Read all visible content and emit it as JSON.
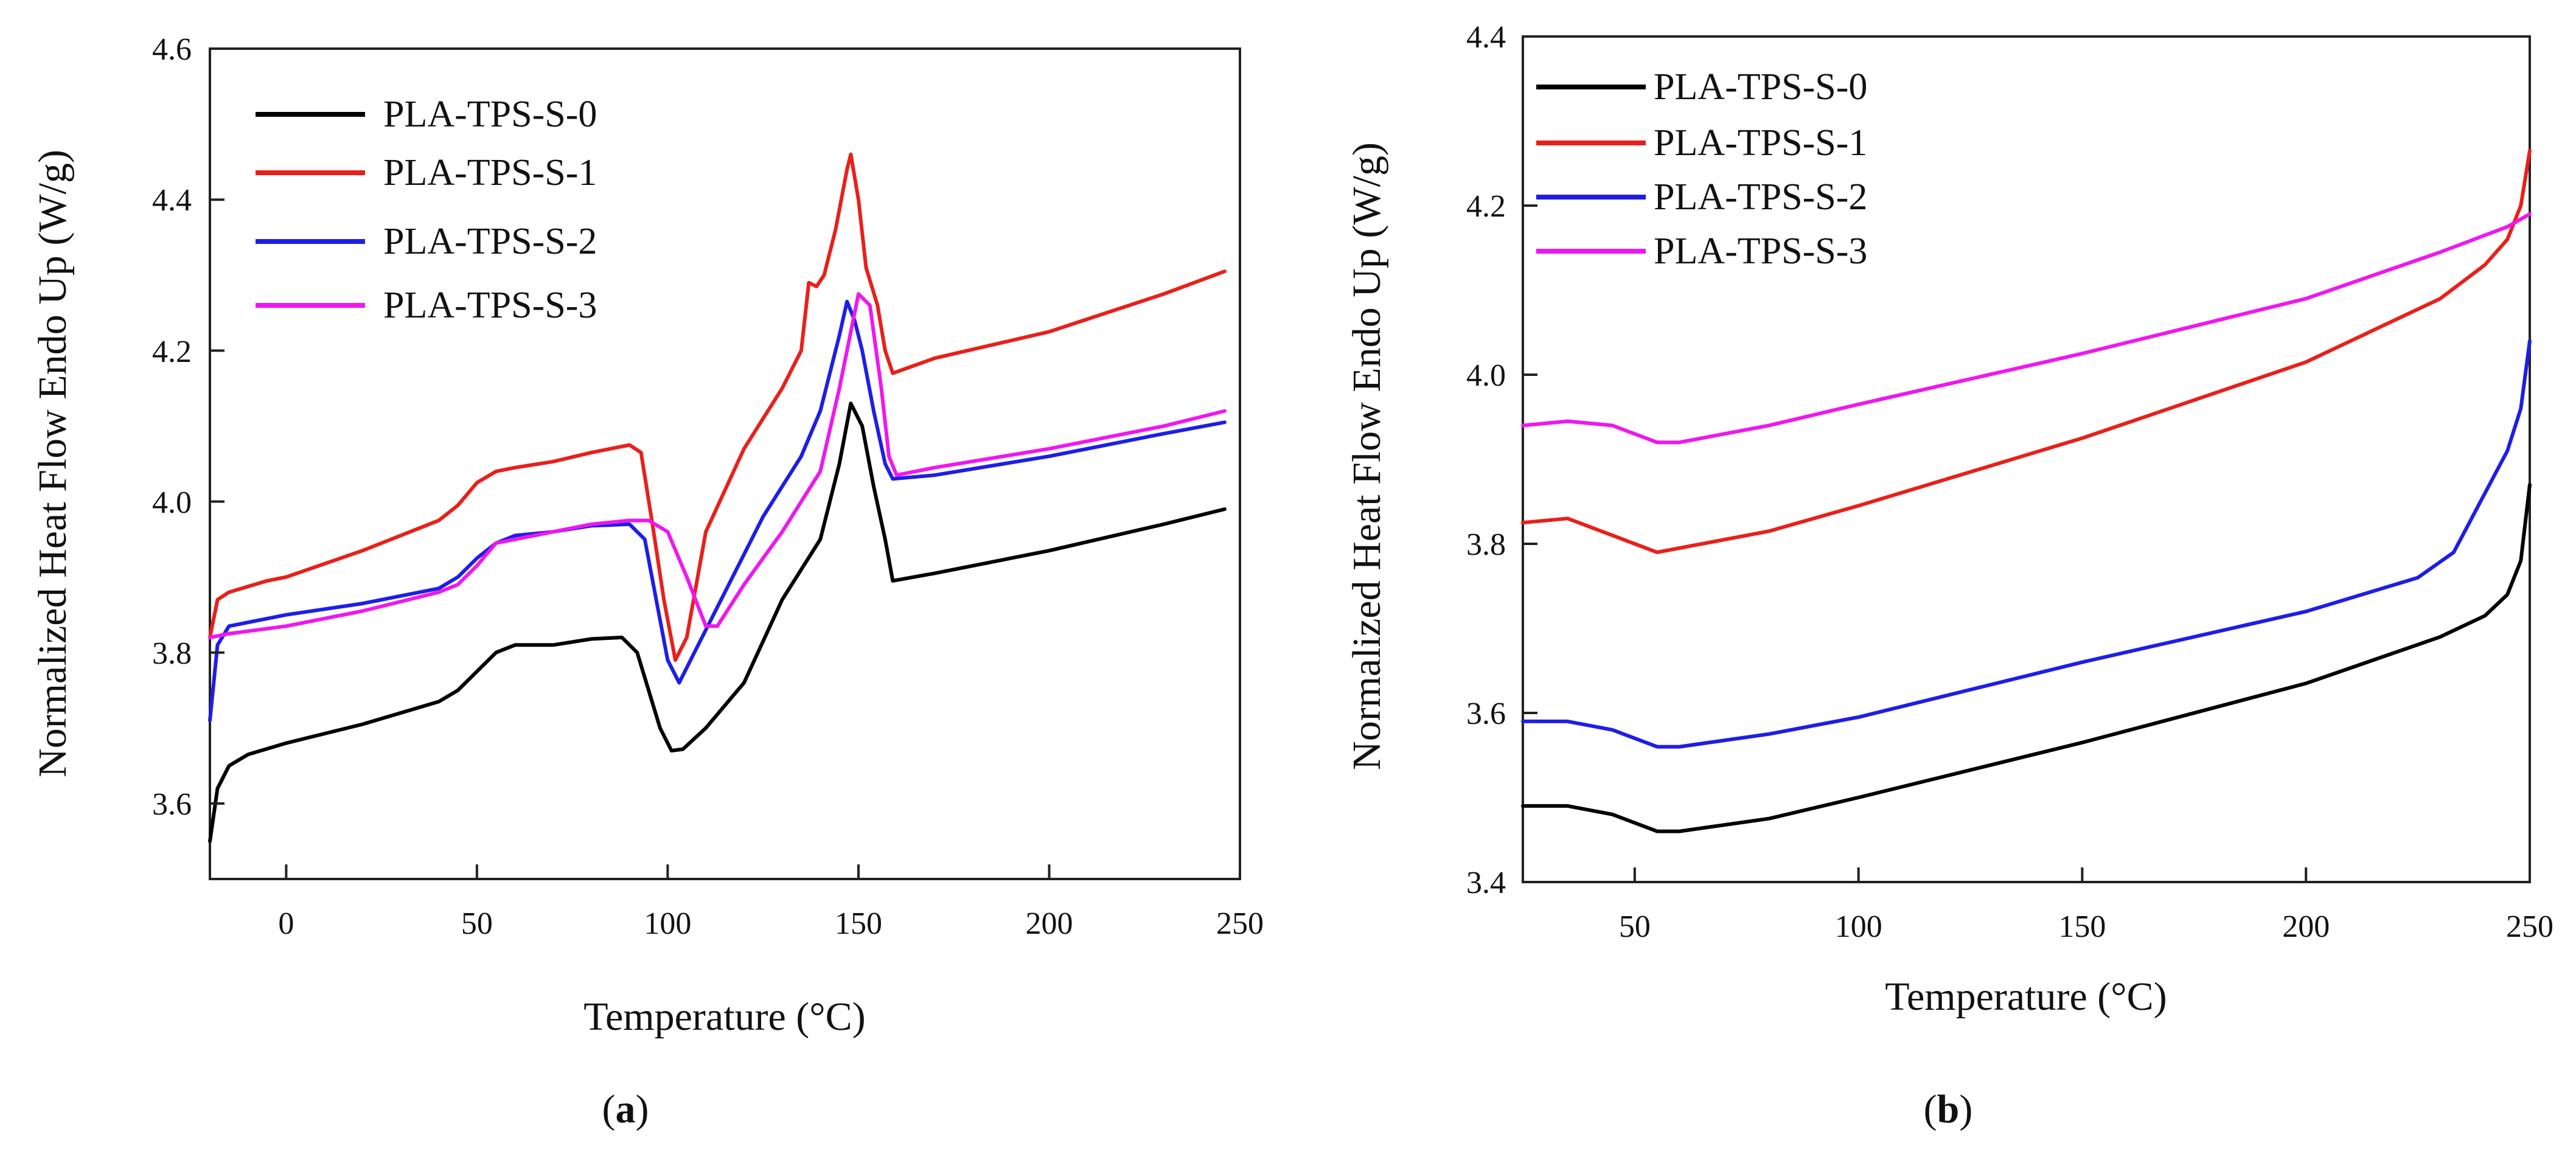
{
  "chart_data": [
    {
      "type": "line",
      "panel": "a",
      "panel_label": "a",
      "title": "",
      "xlabel": "Temperature (°C)",
      "ylabel": "Normalized Heat Flow Endo Up (W/g)",
      "xlim": [
        -20,
        250
      ],
      "ylim": [
        3.5,
        4.6
      ],
      "xticks": [
        0,
        50,
        100,
        150,
        200,
        250
      ],
      "yticks": [
        3.6,
        3.8,
        4.0,
        4.2,
        4.4,
        4.6
      ],
      "xtick_labels": [
        "0",
        "50",
        "100",
        "150",
        "200",
        "250"
      ],
      "ytick_labels": [
        "3.6",
        "3.8",
        "4.0",
        "4.2",
        "4.4",
        "4.6"
      ],
      "legend_position": "top-left",
      "series": [
        {
          "name": "PLA-TPS-S-0",
          "color": "#000000",
          "points": [
            [
              -20,
              3.55
            ],
            [
              -18,
              3.62
            ],
            [
              -15,
              3.65
            ],
            [
              -10,
              3.665
            ],
            [
              0,
              3.68
            ],
            [
              20,
              3.705
            ],
            [
              40,
              3.735
            ],
            [
              45,
              3.75
            ],
            [
              50,
              3.775
            ],
            [
              55,
              3.8
            ],
            [
              60,
              3.81
            ],
            [
              70,
              3.81
            ],
            [
              80,
              3.818
            ],
            [
              88,
              3.82
            ],
            [
              92,
              3.8
            ],
            [
              95,
              3.75
            ],
            [
              98,
              3.7
            ],
            [
              101,
              3.67
            ],
            [
              104,
              3.672
            ],
            [
              110,
              3.7
            ],
            [
              120,
              3.76
            ],
            [
              130,
              3.87
            ],
            [
              140,
              3.95
            ],
            [
              145,
              4.05
            ],
            [
              148,
              4.13
            ],
            [
              151,
              4.1
            ],
            [
              154,
              4.02
            ],
            [
              157,
              3.95
            ],
            [
              159,
              3.895
            ],
            [
              170,
              3.905
            ],
            [
              200,
              3.935
            ],
            [
              230,
              3.97
            ],
            [
              246,
              3.99
            ]
          ]
        },
        {
          "name": "PLA-TPS-S-1",
          "color": "#e8201b",
          "points": [
            [
              -20,
              3.82
            ],
            [
              -18,
              3.87
            ],
            [
              -15,
              3.88
            ],
            [
              -5,
              3.895
            ],
            [
              0,
              3.9
            ],
            [
              20,
              3.935
            ],
            [
              40,
              3.975
            ],
            [
              45,
              3.995
            ],
            [
              50,
              4.025
            ],
            [
              55,
              4.04
            ],
            [
              60,
              4.045
            ],
            [
              70,
              4.053
            ],
            [
              80,
              4.065
            ],
            [
              90,
              4.075
            ],
            [
              93,
              4.065
            ],
            [
              96,
              3.97
            ],
            [
              99,
              3.87
            ],
            [
              102,
              3.79
            ],
            [
              105,
              3.82
            ],
            [
              110,
              3.96
            ],
            [
              120,
              4.07
            ],
            [
              130,
              4.15
            ],
            [
              135,
              4.2
            ],
            [
              137,
              4.29
            ],
            [
              139,
              4.285
            ],
            [
              141,
              4.3
            ],
            [
              144,
              4.36
            ],
            [
              147,
              4.44
            ],
            [
              148,
              4.46
            ],
            [
              150,
              4.4
            ],
            [
              152,
              4.31
            ],
            [
              155,
              4.26
            ],
            [
              157,
              4.2
            ],
            [
              159,
              4.17
            ],
            [
              170,
              4.19
            ],
            [
              200,
              4.225
            ],
            [
              230,
              4.275
            ],
            [
              246,
              4.305
            ]
          ]
        },
        {
          "name": "PLA-TPS-S-2",
          "color": "#1e1ee6",
          "points": [
            [
              -20,
              3.71
            ],
            [
              -18,
              3.81
            ],
            [
              -15,
              3.835
            ],
            [
              -5,
              3.845
            ],
            [
              0,
              3.85
            ],
            [
              20,
              3.865
            ],
            [
              40,
              3.885
            ],
            [
              45,
              3.9
            ],
            [
              50,
              3.925
            ],
            [
              55,
              3.945
            ],
            [
              60,
              3.955
            ],
            [
              70,
              3.96
            ],
            [
              80,
              3.968
            ],
            [
              90,
              3.97
            ],
            [
              94,
              3.95
            ],
            [
              97,
              3.87
            ],
            [
              100,
              3.79
            ],
            [
              103,
              3.76
            ],
            [
              107,
              3.8
            ],
            [
              115,
              3.88
            ],
            [
              125,
              3.98
            ],
            [
              135,
              4.06
            ],
            [
              140,
              4.12
            ],
            [
              145,
              4.22
            ],
            [
              147,
              4.265
            ],
            [
              149,
              4.24
            ],
            [
              151,
              4.2
            ],
            [
              154,
              4.12
            ],
            [
              157,
              4.05
            ],
            [
              159,
              4.03
            ],
            [
              170,
              4.035
            ],
            [
              200,
              4.06
            ],
            [
              230,
              4.09
            ],
            [
              246,
              4.105
            ]
          ]
        },
        {
          "name": "PLA-TPS-S-3",
          "color": "#ee18ee",
          "points": [
            [
              -20,
              3.82
            ],
            [
              -15,
              3.825
            ],
            [
              0,
              3.835
            ],
            [
              20,
              3.855
            ],
            [
              40,
              3.88
            ],
            [
              45,
              3.89
            ],
            [
              50,
              3.915
            ],
            [
              55,
              3.945
            ],
            [
              60,
              3.95
            ],
            [
              70,
              3.96
            ],
            [
              80,
              3.97
            ],
            [
              90,
              3.975
            ],
            [
              95,
              3.975
            ],
            [
              100,
              3.96
            ],
            [
              105,
              3.9
            ],
            [
              110,
              3.835
            ],
            [
              113,
              3.835
            ],
            [
              120,
              3.89
            ],
            [
              130,
              3.96
            ],
            [
              140,
              4.04
            ],
            [
              145,
              4.15
            ],
            [
              150,
              4.275
            ],
            [
              153,
              4.26
            ],
            [
              156,
              4.15
            ],
            [
              158,
              4.06
            ],
            [
              160,
              4.035
            ],
            [
              170,
              4.045
            ],
            [
              200,
              4.07
            ],
            [
              230,
              4.1
            ],
            [
              246,
              4.12
            ]
          ]
        }
      ]
    },
    {
      "type": "line",
      "panel": "b",
      "panel_label": "b",
      "title": "",
      "xlabel": "Temperature (°C)",
      "ylabel": "Normalized Heat Flow Endo Up (W/g)",
      "xlim": [
        25,
        250
      ],
      "ylim": [
        3.4,
        4.4
      ],
      "xticks": [
        50,
        100,
        150,
        200,
        250
      ],
      "yticks": [
        3.4,
        3.6,
        3.8,
        4.0,
        4.2,
        4.4
      ],
      "xtick_labels": [
        "50",
        "100",
        "150",
        "200",
        "250"
      ],
      "ytick_labels": [
        "3.4",
        "3.6",
        "3.8",
        "4.0",
        "4.2",
        "4.4"
      ],
      "legend_position": "top-left",
      "series": [
        {
          "name": "PLA-TPS-S-0",
          "color": "#000000",
          "points": [
            [
              25,
              3.49
            ],
            [
              35,
              3.49
            ],
            [
              45,
              3.48
            ],
            [
              55,
              3.46
            ],
            [
              60,
              3.46
            ],
            [
              80,
              3.475
            ],
            [
              100,
              3.5
            ],
            [
              150,
              3.565
            ],
            [
              200,
              3.635
            ],
            [
              230,
              3.69
            ],
            [
              240,
              3.715
            ],
            [
              245,
              3.74
            ],
            [
              248,
              3.78
            ],
            [
              250,
              3.87
            ]
          ]
        },
        {
          "name": "PLA-TPS-S-1",
          "color": "#e8201b",
          "points": [
            [
              25,
              3.825
            ],
            [
              35,
              3.83
            ],
            [
              45,
              3.81
            ],
            [
              55,
              3.79
            ],
            [
              60,
              3.795
            ],
            [
              80,
              3.815
            ],
            [
              100,
              3.845
            ],
            [
              150,
              3.925
            ],
            [
              200,
              4.015
            ],
            [
              230,
              4.09
            ],
            [
              240,
              4.13
            ],
            [
              245,
              4.16
            ],
            [
              248,
              4.2
            ],
            [
              250,
              4.265
            ]
          ]
        },
        {
          "name": "PLA-TPS-S-2",
          "color": "#1e1ee6",
          "points": [
            [
              25,
              3.59
            ],
            [
              35,
              3.59
            ],
            [
              45,
              3.58
            ],
            [
              55,
              3.56
            ],
            [
              60,
              3.56
            ],
            [
              80,
              3.575
            ],
            [
              100,
              3.595
            ],
            [
              150,
              3.66
            ],
            [
              200,
              3.72
            ],
            [
              225,
              3.76
            ],
            [
              233,
              3.79
            ],
            [
              240,
              3.86
            ],
            [
              245,
              3.91
            ],
            [
              248,
              3.96
            ],
            [
              250,
              4.04
            ]
          ]
        },
        {
          "name": "PLA-TPS-S-3",
          "color": "#ee18ee",
          "points": [
            [
              25,
              3.94
            ],
            [
              35,
              3.945
            ],
            [
              45,
              3.94
            ],
            [
              55,
              3.92
            ],
            [
              60,
              3.92
            ],
            [
              80,
              3.94
            ],
            [
              100,
              3.965
            ],
            [
              150,
              4.025
            ],
            [
              200,
              4.09
            ],
            [
              230,
              4.145
            ],
            [
              240,
              4.165
            ],
            [
              245,
              4.175
            ],
            [
              250,
              4.19
            ]
          ]
        }
      ]
    }
  ]
}
